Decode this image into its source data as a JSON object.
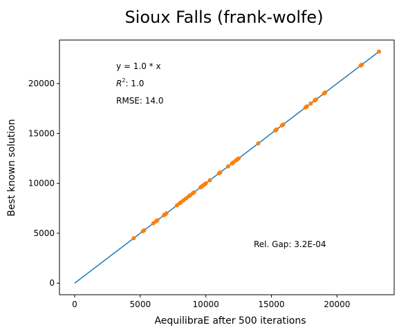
{
  "chart_data": {
    "type": "scatter",
    "title": "Sioux Falls (frank-wolfe)",
    "xlabel": "AequilibraE after 500 iterations",
    "ylabel": "Best known solution",
    "xlim": [
      -1160,
      24360
    ],
    "ylim": [
      -1160,
      24360
    ],
    "xticks": [
      0,
      5000,
      10000,
      15000,
      20000
    ],
    "yticks": [
      0,
      5000,
      10000,
      15000,
      20000
    ],
    "grid": false,
    "annotations": {
      "equation": "y = 1.0 * x",
      "r2_label": "R",
      "r2_sup": "2",
      "r2_value": ":  1.0",
      "rmse": "RMSE: 14.0",
      "gap": "Rel. Gap: 3.2E-04"
    },
    "fit_line": {
      "x": [
        0,
        23200
      ],
      "y": [
        0,
        23200
      ],
      "color": "#1f77b4"
    },
    "points_color": "#ff7f0e",
    "points": {
      "x": [
        4500,
        5200,
        5300,
        6000,
        6200,
        6300,
        6800,
        6900,
        7000,
        7800,
        8000,
        8100,
        8300,
        8500,
        8700,
        8800,
        9000,
        9100,
        9600,
        9700,
        9800,
        9900,
        10000,
        10300,
        11000,
        11100,
        11700,
        12000,
        12100,
        12300,
        12400,
        12500,
        14000,
        15300,
        15400,
        15800,
        15900,
        17600,
        17700,
        18000,
        18300,
        18400,
        19000,
        19100,
        21800,
        21900,
        23200
      ],
      "y": [
        4500,
        5200,
        5300,
        6000,
        6200,
        6300,
        6800,
        6900,
        7000,
        7800,
        8000,
        8100,
        8300,
        8500,
        8700,
        8800,
        9000,
        9100,
        9600,
        9700,
        9800,
        9900,
        10000,
        10300,
        11000,
        11100,
        11700,
        12000,
        12100,
        12300,
        12400,
        12500,
        14000,
        15300,
        15400,
        15800,
        15900,
        17600,
        17700,
        18000,
        18300,
        18400,
        19000,
        19100,
        21800,
        21900,
        23200
      ]
    }
  }
}
